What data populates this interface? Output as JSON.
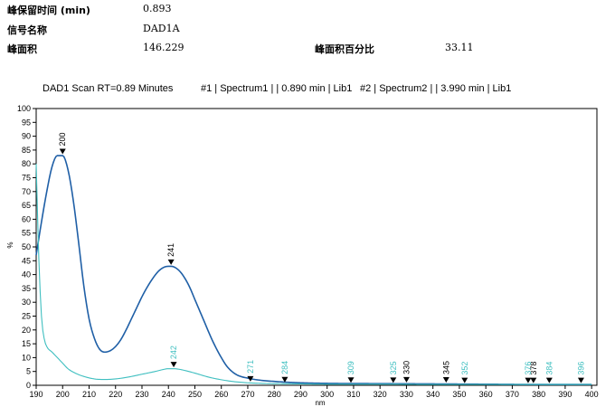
{
  "info": {
    "rt_label": "峰保留时间 (min)",
    "rt_value": "0.893",
    "signal_label": "信号名称",
    "signal_value": "DAD1A",
    "area_label": "峰面积",
    "area_value": "146.229",
    "area_pct_label": "峰面积百分比",
    "area_pct_value": "33.11"
  },
  "colors": {
    "series1": "#1f5fa6",
    "series2": "#3fbfc0"
  },
  "chart_data": {
    "type": "line",
    "title": "DAD1 Scan RT=0.89 Minutes",
    "legend": [
      "#1 | Spectrum1 |  | 0.890 min | Lib1",
      "#2 | Spectrum2 |  | 3.990 min | Lib1"
    ],
    "xlabel": "nm",
    "ylabel": "%",
    "xlim": [
      190,
      402
    ],
    "ylim": [
      0,
      100
    ],
    "x_ticks": [
      190,
      200,
      210,
      220,
      230,
      240,
      250,
      260,
      270,
      280,
      290,
      300,
      310,
      320,
      330,
      340,
      350,
      360,
      370,
      380,
      390,
      400
    ],
    "y_ticks": [
      0,
      5,
      10,
      15,
      20,
      25,
      30,
      35,
      40,
      45,
      50,
      55,
      60,
      65,
      70,
      75,
      80,
      85,
      90,
      95,
      100
    ],
    "series": [
      {
        "x": [
          190,
          192,
          194,
          196,
          198,
          200,
          202,
          204,
          206,
          208,
          210,
          212,
          214,
          216,
          218,
          220,
          222,
          224,
          226,
          228,
          230,
          232,
          234,
          236,
          238,
          240,
          241,
          242,
          244,
          246,
          248,
          250,
          252,
          254,
          256,
          258,
          260,
          262,
          264,
          266,
          268,
          270,
          272,
          275,
          280,
          285,
          290,
          300,
          320,
          340,
          360,
          380,
          400
        ],
        "values": [
          47,
          59,
          70,
          79,
          83,
          83,
          78,
          67,
          52,
          36,
          24,
          17,
          13,
          12,
          12.5,
          14,
          16.5,
          20,
          24,
          28,
          32,
          35.5,
          38.5,
          41,
          42.5,
          43,
          43,
          42.8,
          41.5,
          39,
          35.5,
          31,
          26.5,
          22,
          17.5,
          13.5,
          10,
          7,
          5,
          3.7,
          3,
          2.6,
          2.2,
          1.8,
          1.4,
          1.1,
          0.9,
          0.7,
          0.6,
          0.5,
          0.4,
          0.3,
          0.3
        ],
        "peaks": [
          200,
          241,
          330,
          345,
          378
        ]
      },
      {
        "x": [
          190,
          191,
          192,
          193,
          194,
          196,
          198,
          200,
          202,
          205,
          208,
          212,
          216,
          220,
          225,
          230,
          235,
          238,
          240,
          242,
          244,
          246,
          250,
          255,
          260,
          265,
          270,
          275,
          280,
          290,
          300,
          320,
          340,
          360,
          380,
          400
        ],
        "values": [
          80,
          46,
          25,
          17,
          14,
          12,
          10,
          8,
          6,
          4.3,
          3.2,
          2.3,
          2.1,
          2.3,
          3,
          4,
          5,
          5.7,
          6,
          6,
          5.8,
          5.4,
          4.4,
          3,
          2,
          1.3,
          0.9,
          0.7,
          0.6,
          0.5,
          0.4,
          0.4,
          0.3,
          0.3,
          0.3,
          0.3
        ],
        "peaks": [
          242,
          271,
          284,
          309,
          325,
          352,
          376,
          384,
          396
        ]
      }
    ]
  }
}
